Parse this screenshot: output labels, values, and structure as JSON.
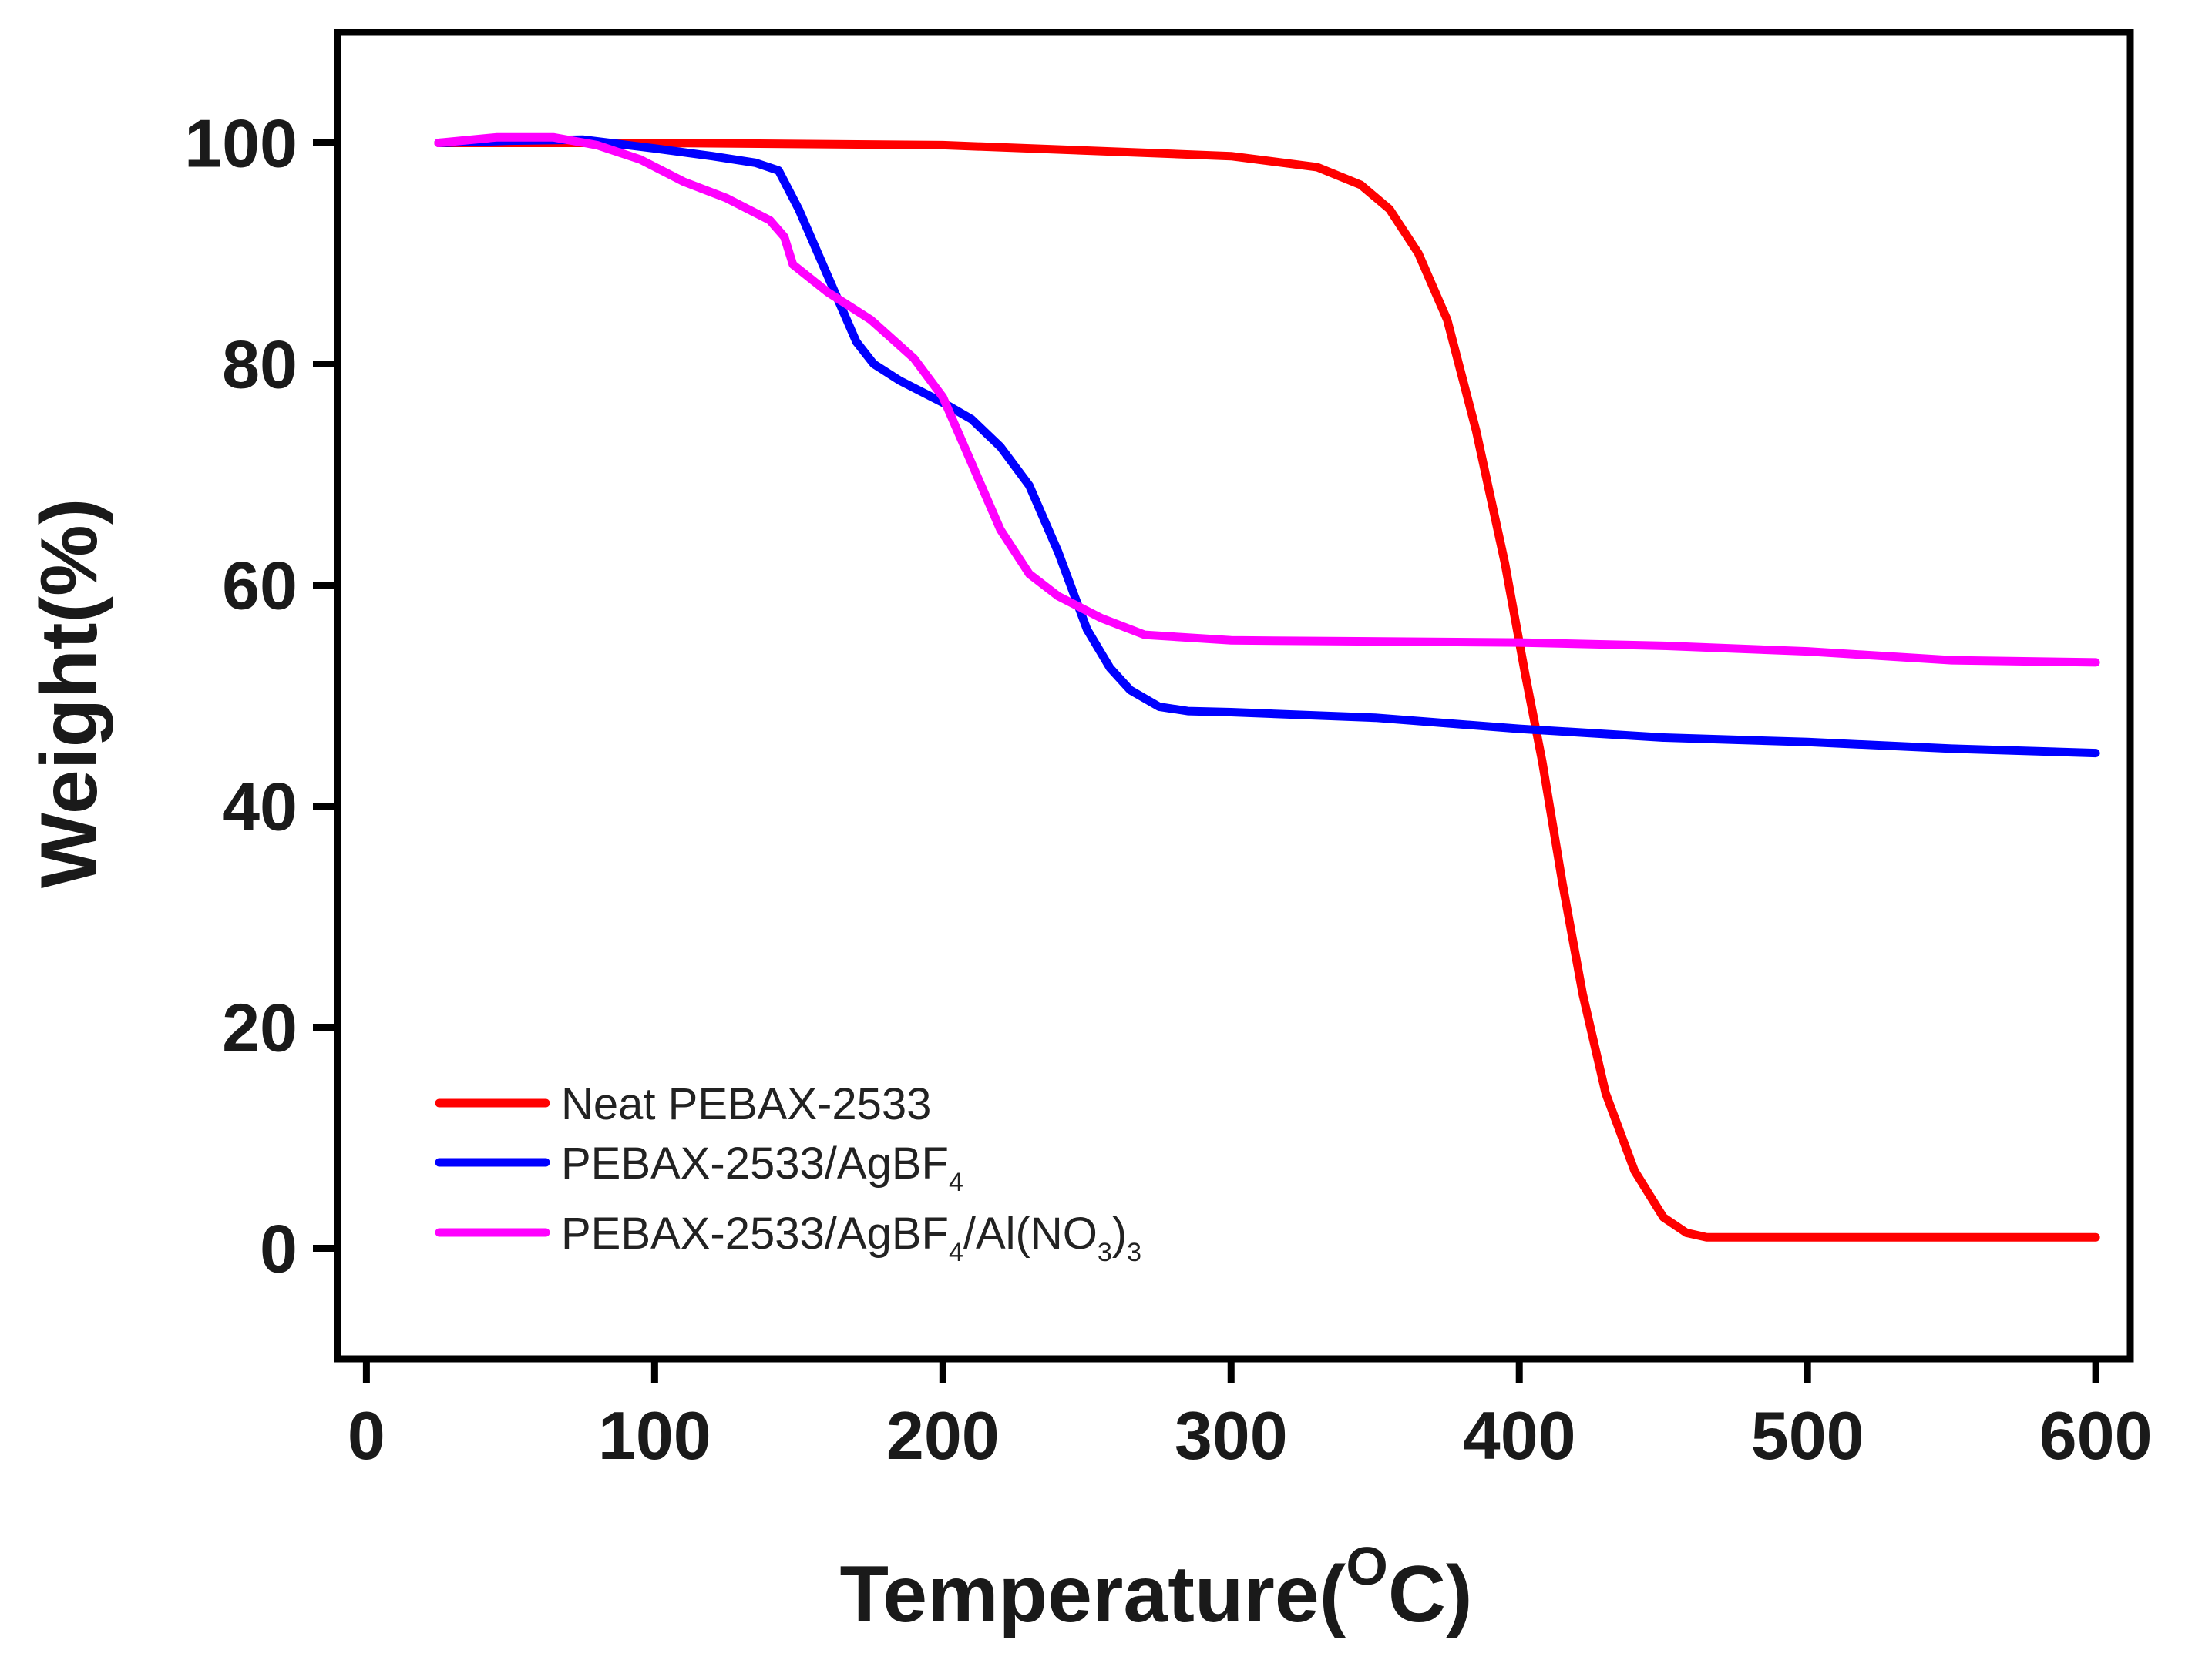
{
  "chart_data": {
    "type": "line",
    "title": "",
    "xlabel": "Temperature",
    "xlabel_unit_sup": "O",
    "xlabel_unit": "C",
    "ylabel": "Weight(%)",
    "xlim": [
      -10,
      612
    ],
    "ylim": [
      -10,
      110
    ],
    "xticks": [
      0,
      100,
      200,
      300,
      400,
      500,
      600
    ],
    "yticks": [
      0,
      20,
      40,
      60,
      80,
      100
    ],
    "grid": false,
    "legend_position": "bottom-left",
    "series": [
      {
        "name": "Neat PEBAX-2533",
        "color": "#ff0000",
        "legend_parts": [
          {
            "text": "Neat PEBAX-2533",
            "sub": false
          }
        ],
        "points": [
          [
            25,
            100
          ],
          [
            100,
            100
          ],
          [
            200,
            99.8
          ],
          [
            250,
            99.3
          ],
          [
            300,
            98.8
          ],
          [
            330,
            97.8
          ],
          [
            345,
            96.2
          ],
          [
            355,
            94
          ],
          [
            365,
            90
          ],
          [
            375,
            84
          ],
          [
            385,
            74
          ],
          [
            395,
            62
          ],
          [
            402,
            52
          ],
          [
            408,
            44
          ],
          [
            415,
            33
          ],
          [
            422,
            23
          ],
          [
            430,
            14
          ],
          [
            440,
            7
          ],
          [
            450,
            2.8
          ],
          [
            458,
            1.4
          ],
          [
            465,
            1
          ],
          [
            500,
            1
          ],
          [
            600,
            1
          ]
        ]
      },
      {
        "name": "PEBAX-2533/AgBF4",
        "color": "#0000ff",
        "legend_parts": [
          {
            "text": "PEBAX-2533/AgBF",
            "sub": false
          },
          {
            "text": "4",
            "sub": true
          }
        ],
        "points": [
          [
            25,
            100
          ],
          [
            50,
            100.2
          ],
          [
            75,
            100.3
          ],
          [
            100,
            99.5
          ],
          [
            120,
            98.8
          ],
          [
            135,
            98.2
          ],
          [
            143,
            97.5
          ],
          [
            150,
            94
          ],
          [
            160,
            88
          ],
          [
            170,
            82
          ],
          [
            176,
            80
          ],
          [
            185,
            78.5
          ],
          [
            200,
            76.5
          ],
          [
            210,
            75
          ],
          [
            220,
            72.5
          ],
          [
            230,
            69
          ],
          [
            240,
            63
          ],
          [
            250,
            56
          ],
          [
            258,
            52.5
          ],
          [
            265,
            50.5
          ],
          [
            275,
            49
          ],
          [
            285,
            48.6
          ],
          [
            300,
            48.5
          ],
          [
            350,
            48
          ],
          [
            400,
            47
          ],
          [
            450,
            46.2
          ],
          [
            500,
            45.8
          ],
          [
            550,
            45.2
          ],
          [
            600,
            44.8
          ]
        ]
      },
      {
        "name": "PEBAX-2533/AgBF4/Al(NO3)3",
        "color": "#ff00ff",
        "legend_parts": [
          {
            "text": "PEBAX-2533/AgBF",
            "sub": false
          },
          {
            "text": "4",
            "sub": true
          },
          {
            "text": "/Al(NO",
            "sub": false
          },
          {
            "text": "3",
            "sub": true
          },
          {
            "text": ")",
            "sub": false
          },
          {
            "text": "3",
            "sub": true
          }
        ],
        "points": [
          [
            25,
            100
          ],
          [
            45,
            100.5
          ],
          [
            65,
            100.5
          ],
          [
            80,
            99.8
          ],
          [
            95,
            98.5
          ],
          [
            110,
            96.5
          ],
          [
            125,
            95
          ],
          [
            140,
            93
          ],
          [
            145,
            91.5
          ],
          [
            148,
            89
          ],
          [
            160,
            86.5
          ],
          [
            175,
            84
          ],
          [
            190,
            80.5
          ],
          [
            200,
            77
          ],
          [
            210,
            71
          ],
          [
            220,
            65
          ],
          [
            230,
            61
          ],
          [
            240,
            59
          ],
          [
            255,
            57
          ],
          [
            270,
            55.5
          ],
          [
            300,
            55
          ],
          [
            400,
            54.8
          ],
          [
            450,
            54.5
          ],
          [
            500,
            54
          ],
          [
            550,
            53.2
          ],
          [
            600,
            53
          ]
        ]
      }
    ]
  }
}
